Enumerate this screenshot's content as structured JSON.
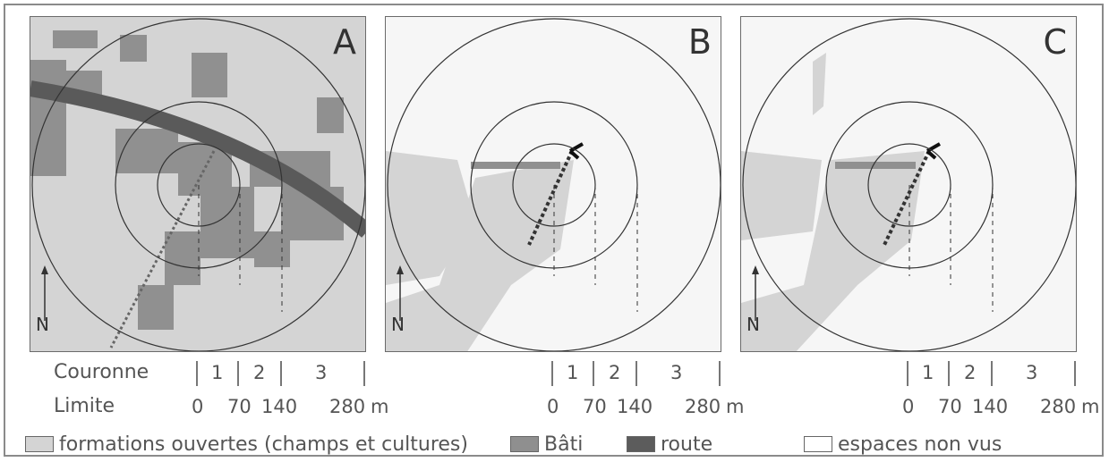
{
  "panels": [
    {
      "letter": "A",
      "north": "N"
    },
    {
      "letter": "B",
      "north": "N"
    },
    {
      "letter": "C",
      "north": "N"
    }
  ],
  "scale": {
    "couronne_label": "Couronne",
    "limite_label": "Limite",
    "crowns": [
      "1",
      "2",
      "3"
    ],
    "limits": [
      "0",
      "70",
      "140",
      "280"
    ],
    "unit": "m"
  },
  "legend": [
    {
      "label": "formations ouvertes (champs et cultures)",
      "color": "#d4d4d4"
    },
    {
      "label": "Bâti",
      "color": "#8f8f8f"
    },
    {
      "label": "route",
      "color": "#5c5c5c"
    },
    {
      "label": "espaces non vus",
      "color": "#ffffff"
    }
  ],
  "colors": {
    "open": "#d4d4d4",
    "unseen": "#f6f6f6",
    "built": "#909090",
    "road": "#5a5a5a"
  }
}
